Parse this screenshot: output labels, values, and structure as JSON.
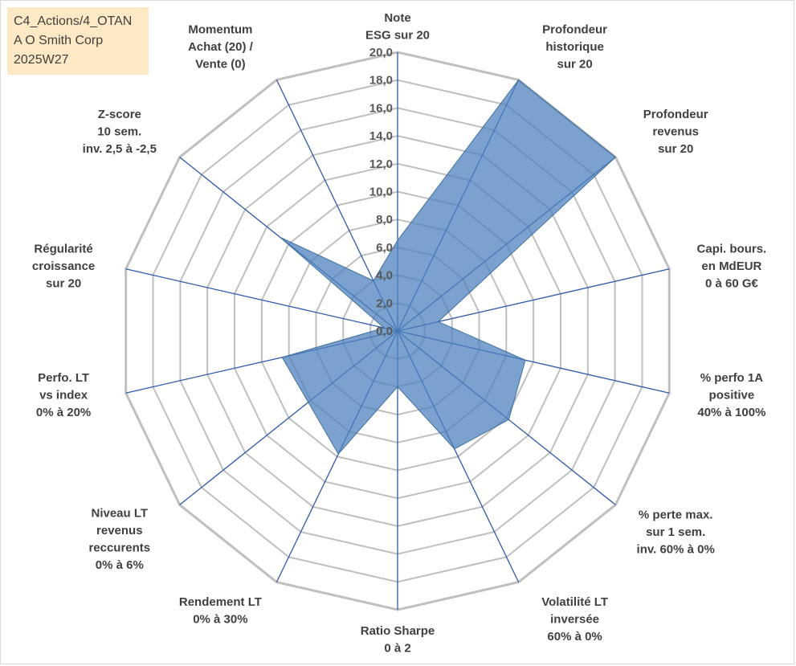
{
  "title_box": {
    "line1": "C4_Actions/4_OTAN",
    "line2": "A O Smith Corp",
    "line3": "2025W27"
  },
  "chart_data": {
    "type": "radar",
    "axes": [
      [
        "Note",
        "ESG sur 20"
      ],
      [
        "Profondeur",
        "historique",
        "sur 20"
      ],
      [
        "Profondeur",
        "revenus",
        "sur 20"
      ],
      [
        "Capi. bours.",
        "en MdEUR",
        "0 à 60 G€"
      ],
      [
        "% perfo 1A",
        "positive",
        "40% à 100%"
      ],
      [
        "% perte max.",
        "sur 1 sem.",
        "inv. 60% à 0%"
      ],
      [
        "Volatilité LT",
        "inversée",
        "60% à 0%"
      ],
      [
        "Ratio Sharpe",
        "0 à 2"
      ],
      [
        "Rendement LT",
        "0% à 30%"
      ],
      [
        "Niveau LT",
        "revenus",
        "reccurents",
        "0% à 6%"
      ],
      [
        "Perfo. LT",
        "vs index",
        "0% à 20%"
      ],
      [
        "Régularité",
        "croissance",
        "sur 20"
      ],
      [
        "Z-score",
        "10 sem.",
        "inv. 2,5 à -2,5"
      ],
      [
        "Momentum",
        "Achat (20) /",
        "Vente (0)"
      ]
    ],
    "ticks": [
      "0,0",
      "2,0",
      "4,0",
      "6,0",
      "8,0",
      "10,0",
      "12,0",
      "14,0",
      "16,0",
      "18,0",
      "20,0"
    ],
    "rmin": 0,
    "rmax": 20,
    "series": [
      {
        "values": [
          6.5,
          20,
          20,
          3.0,
          9.4,
          10.2,
          9.4,
          4.0,
          9.8,
          8.2,
          8.5,
          1.0,
          10.8,
          4.0
        ],
        "color": "#4f81bd"
      }
    ]
  }
}
